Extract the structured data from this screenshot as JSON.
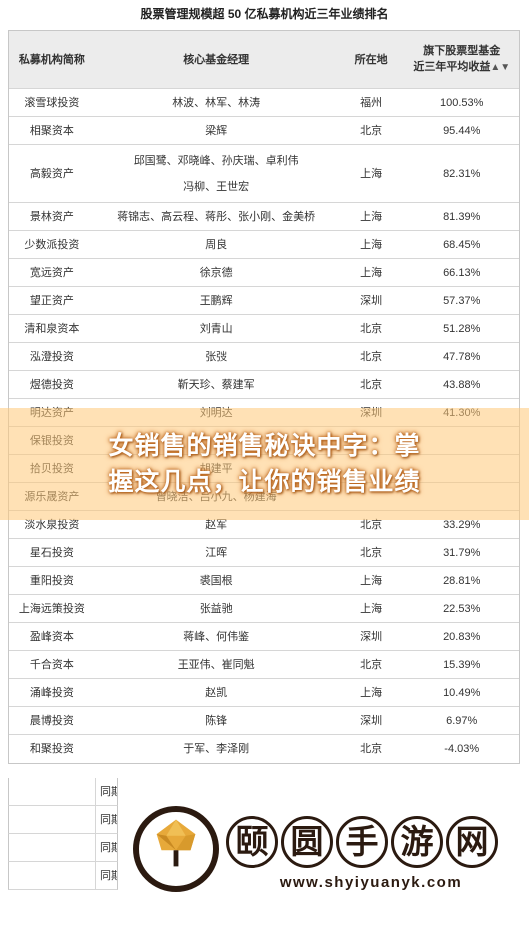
{
  "title": "股票管理规模超 50 亿私募机构近三年业绩排名",
  "columns": {
    "firm": "私募机构简称",
    "managers": "核心基金经理",
    "location": "所在地",
    "return_line1": "旗下股票型基金",
    "return_line2": "近三年平均收益",
    "sort_icon": "▲▼"
  },
  "rows": [
    {
      "firm": "滚雪球投资",
      "managers": "林波、林军、林涛",
      "location": "福州",
      "return": "100.53%"
    },
    {
      "firm": "相聚资本",
      "managers": "梁辉",
      "location": "北京",
      "return": "95.44%"
    },
    {
      "firm": "高毅资产",
      "managers": "邱国鹭、邓晓峰、孙庆瑞、卓利伟",
      "managers2": "冯柳、王世宏",
      "location": "上海",
      "return": "82.31%"
    },
    {
      "firm": "景林资产",
      "managers": "蒋锦志、高云程、蒋彤、张小刚、金美桥",
      "location": "上海",
      "return": "81.39%"
    },
    {
      "firm": "少数派投资",
      "managers": "周良",
      "location": "上海",
      "return": "68.45%"
    },
    {
      "firm": "宽远资产",
      "managers": "徐京德",
      "location": "上海",
      "return": "66.13%"
    },
    {
      "firm": "望正资产",
      "managers": "王鹏辉",
      "location": "深圳",
      "return": "57.37%"
    },
    {
      "firm": "清和泉资本",
      "managers": "刘青山",
      "location": "北京",
      "return": "51.28%"
    },
    {
      "firm": "泓澄投资",
      "managers": "张弢",
      "location": "北京",
      "return": "47.78%"
    },
    {
      "firm": "煜德投资",
      "managers": "靳天珍、蔡建军",
      "location": "北京",
      "return": "43.88%"
    },
    {
      "firm": "明达资产",
      "managers": "刘明达",
      "location": "深圳",
      "return": "41.30%"
    },
    {
      "firm": "保银投资",
      "managers": "",
      "location": "",
      "return": ""
    },
    {
      "firm": "拾贝投资",
      "managers": "胡建平",
      "location": "",
      "return": ""
    },
    {
      "firm": "源乐晟资产",
      "managers": "曾晓洁、吕小九、杨建海",
      "location": "",
      "return": ""
    },
    {
      "firm": "淡水泉投资",
      "managers": "赵军",
      "location": "北京",
      "return": "33.29%"
    },
    {
      "firm": "星石投资",
      "managers": "江晖",
      "location": "北京",
      "return": "31.79%"
    },
    {
      "firm": "重阳投资",
      "managers": "裘国根",
      "location": "上海",
      "return": "28.81%"
    },
    {
      "firm": "上海远策投资",
      "managers": "张益驰",
      "location": "上海",
      "return": "22.53%"
    },
    {
      "firm": "盈峰资本",
      "managers": "蒋峰、何伟鉴",
      "location": "深圳",
      "return": "20.83%"
    },
    {
      "firm": "千合资本",
      "managers": "王亚伟、崔同魁",
      "location": "北京",
      "return": "15.39%"
    },
    {
      "firm": "涌峰投资",
      "managers": "赵凯",
      "location": "上海",
      "return": "10.49%"
    },
    {
      "firm": "晨博投资",
      "managers": "陈锋",
      "location": "深圳",
      "return": "6.97%"
    },
    {
      "firm": "和聚投资",
      "managers": "于军、李泽刚",
      "location": "北京",
      "return": "-4.03%"
    }
  ],
  "extra_rows": [
    "同期",
    "同期",
    "同期",
    "同期"
  ],
  "banner": {
    "line1": "女销售的销售秘诀中字：掌",
    "line2": "握这几点，让你的销售业绩"
  },
  "watermark": {
    "chars": [
      "颐",
      "圆",
      "手",
      "游",
      "网"
    ],
    "url": "www.shyiyuanyk.com",
    "icon": "tree-logo-icon"
  }
}
